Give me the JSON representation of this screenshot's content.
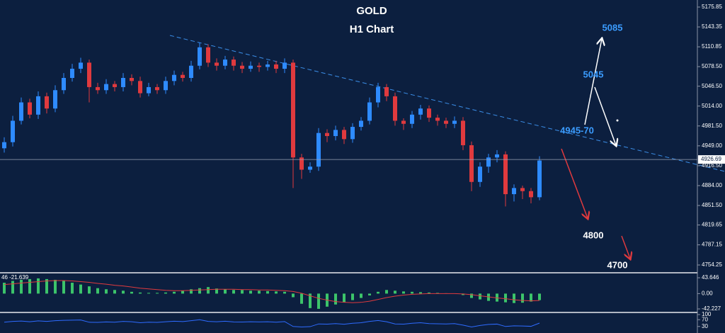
{
  "chart_data": {
    "type": "candlestick",
    "title": "GOLD",
    "subtitle": "H1 Chart",
    "up_color": "#2e8bff",
    "down_color": "#e03a3e",
    "open": [
      4945,
      4955,
      4990,
      5020,
      5000,
      5030,
      5010,
      5040,
      5060,
      5075,
      5085,
      5045,
      5040,
      5050,
      5045,
      5060,
      5055,
      5035,
      5045,
      5040,
      5055,
      5065,
      5060,
      5080,
      5110,
      5085,
      5080,
      5090,
      5080,
      5075,
      5080,
      5078,
      5082,
      5075,
      5085,
      4930,
      4910,
      4915,
      4970,
      4965,
      4975,
      4960,
      4980,
      4990,
      5020,
      5045,
      5030,
      4990,
      4985,
      5000,
      5010,
      4995,
      4990,
      4985,
      4990,
      4950,
      4890,
      4915,
      4930,
      4935,
      4870,
      4880,
      4875,
      4865
    ],
    "high": [
      4963,
      4998,
      5028,
      5026,
      5038,
      5036,
      5048,
      5068,
      5083,
      5093,
      5090,
      5052,
      5058,
      5055,
      5068,
      5066,
      5062,
      5052,
      5050,
      5062,
      5072,
      5070,
      5088,
      5118,
      5115,
      5092,
      5096,
      5095,
      5086,
      5087,
      5085,
      5088,
      5088,
      5092,
      5090,
      4936,
      4922,
      4978,
      4976,
      4982,
      4980,
      4986,
      4996,
      5028,
      5052,
      5050,
      5036,
      4994,
      5006,
      5016,
      5015,
      5000,
      4995,
      4997,
      4996,
      4956,
      4922,
      4936,
      4942,
      4940,
      4886,
      4884,
      4880,
      4932
    ],
    "low": [
      4938,
      4948,
      4984,
      4994,
      4993,
      5002,
      5004,
      5034,
      5054,
      5068,
      5020,
      5034,
      5034,
      5038,
      5038,
      5048,
      5028,
      5030,
      5034,
      5034,
      5048,
      5054,
      5054,
      5074,
      5078,
      5072,
      5074,
      5072,
      5068,
      5070,
      5070,
      5072,
      5068,
      5068,
      4880,
      4895,
      4905,
      4908,
      4955,
      4958,
      4952,
      4954,
      4974,
      4984,
      5012,
      5022,
      4982,
      4975,
      4978,
      4992,
      4988,
      4982,
      4978,
      4978,
      4942,
      4875,
      4882,
      4905,
      4922,
      4850,
      4858,
      4862,
      4855,
      4860
    ],
    "close": [
      4955,
      4990,
      5020,
      5000,
      5030,
      5010,
      5040,
      5060,
      5075,
      5085,
      5045,
      5040,
      5050,
      5045,
      5060,
      5055,
      5035,
      5045,
      5040,
      5055,
      5065,
      5060,
      5080,
      5110,
      5085,
      5080,
      5090,
      5080,
      5075,
      5080,
      5078,
      5082,
      5075,
      5085,
      4930,
      4910,
      4915,
      4970,
      4965,
      4975,
      4960,
      4980,
      4990,
      5020,
      5045,
      5030,
      4990,
      4985,
      5000,
      5010,
      4995,
      4990,
      4985,
      4990,
      4950,
      4890,
      4915,
      4930,
      4935,
      4870,
      4880,
      4875,
      4865,
      4925
    ],
    "ylim": [
      4741.5,
      5187.4
    ],
    "yticks": [
      5175.85,
      5143.35,
      5110.85,
      {
        "value": 5078.5,
        "label": "5078.50"
      },
      {
        "value": 5046.5,
        "label": "5046.50"
      },
      {
        "value": 5014,
        "label": "5014.00"
      },
      {
        "value": 4981.5,
        "label": "4981.50"
      },
      {
        "value": 4949,
        "label": "4949.00"
      },
      {
        "value": 4916.5,
        "label": "4916.50"
      },
      {
        "value": 4884,
        "label": "4884.00"
      },
      {
        "value": 4851.5,
        "label": "4851.50"
      },
      4819.65,
      4787.15,
      4754.25
    ],
    "last_price": 4926.69,
    "annotations": [
      "5085",
      "5045",
      "4945-70",
      "4800",
      "4700"
    ],
    "macd_header": "46 -21.639",
    "macd_histogram": [
      30,
      35,
      38,
      40,
      42,
      40,
      38,
      35,
      30,
      25,
      20,
      15,
      12,
      10,
      8,
      5,
      3,
      2,
      2,
      3,
      5,
      8,
      12,
      15,
      18,
      14,
      12,
      10,
      10,
      8,
      8,
      7,
      6,
      5,
      -10,
      -28,
      -40,
      -42,
      -36,
      -30,
      -24,
      -18,
      -12,
      -5,
      5,
      10,
      8,
      6,
      5,
      4,
      3,
      2,
      1,
      0,
      -4,
      -12,
      -16,
      -20,
      -22,
      -24,
      -26,
      -25,
      -22,
      -18
    ],
    "macd_signal": [
      25,
      27,
      29,
      31,
      33,
      35,
      36,
      36,
      35,
      33,
      31,
      28,
      26,
      23,
      21,
      18,
      15,
      13,
      11,
      9,
      8,
      8,
      9,
      10,
      11,
      12,
      12,
      12,
      11,
      11,
      10,
      10,
      9,
      8,
      6,
      1,
      -6,
      -13,
      -18,
      -22,
      -24,
      -25,
      -24,
      -21,
      -16,
      -11,
      -7,
      -4,
      -2,
      -1,
      0,
      0,
      0,
      0,
      -1,
      -3,
      -6,
      -9,
      -12,
      -14,
      -17,
      -19,
      -20,
      -19
    ],
    "macd_color": "#3cc46a",
    "signal_color": "#e03a3e",
    "macd_ylim": [
      -50,
      53.5
    ],
    "macd_yticks": [
      43.646,
      {
        "value": 0,
        "label": "0.00"
      },
      -42.227
    ],
    "rsi": [
      55,
      60,
      62,
      58,
      63,
      60,
      64,
      66,
      67,
      68,
      55,
      54,
      57,
      55,
      60,
      58,
      52,
      55,
      54,
      58,
      61,
      59,
      64,
      70,
      60,
      58,
      61,
      57,
      56,
      58,
      57,
      58,
      55,
      59,
      30,
      27,
      29,
      45,
      44,
      47,
      43,
      49,
      52,
      60,
      65,
      58,
      45,
      44,
      49,
      52,
      47,
      46,
      45,
      47,
      38,
      27,
      36,
      42,
      44,
      30,
      34,
      33,
      31,
      50
    ],
    "rsi_color": "#2e6bff",
    "rsi_ylim": [
      0,
      100
    ],
    "rsi_yticks": [
      100,
      70,
      30
    ]
  }
}
